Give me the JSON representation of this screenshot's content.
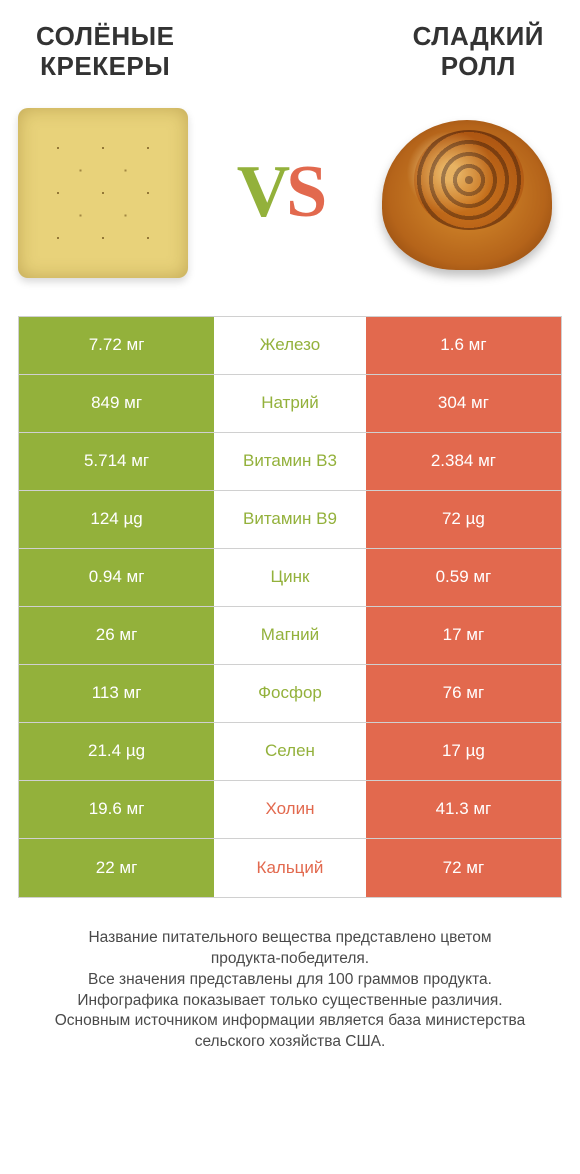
{
  "header": {
    "left_line1": "СОЛЁНЫЕ",
    "left_line2": "КРЕКЕРЫ",
    "right_line1": "СЛАДКИЙ",
    "right_line2": "РОЛЛ"
  },
  "vs": {
    "v": "V",
    "s": "S"
  },
  "colors": {
    "green": "#93b13b",
    "orange": "#e2694e",
    "border": "#d0d0d0",
    "text_white": "#ffffff"
  },
  "table": {
    "rows": [
      {
        "left": "7.72 мг",
        "label": "Железо",
        "right": "1.6 мг",
        "winner": "left"
      },
      {
        "left": "849 мг",
        "label": "Натрий",
        "right": "304 мг",
        "winner": "left"
      },
      {
        "left": "5.714 мг",
        "label": "Витамин B3",
        "right": "2.384 мг",
        "winner": "left"
      },
      {
        "left": "124 µg",
        "label": "Витамин B9",
        "right": "72 µg",
        "winner": "left"
      },
      {
        "left": "0.94 мг",
        "label": "Цинк",
        "right": "0.59 мг",
        "winner": "left"
      },
      {
        "left": "26 мг",
        "label": "Магний",
        "right": "17 мг",
        "winner": "left"
      },
      {
        "left": "113 мг",
        "label": "Фосфор",
        "right": "76 мг",
        "winner": "left"
      },
      {
        "left": "21.4 µg",
        "label": "Селен",
        "right": "17 µg",
        "winner": "left"
      },
      {
        "left": "19.6 мг",
        "label": "Холин",
        "right": "41.3 мг",
        "winner": "right"
      },
      {
        "left": "22 мг",
        "label": "Кальций",
        "right": "72 мг",
        "winner": "right"
      }
    ]
  },
  "footnote": {
    "l1": "Название питательного вещества представлено цветом",
    "l2": "продукта-победителя.",
    "l3": "Все значения представлены для 100 граммов продукта.",
    "l4": "Инфографика показывает только существенные различия.",
    "l5": "Основным источником информации является база министерства",
    "l6": "сельского хозяйства США."
  }
}
